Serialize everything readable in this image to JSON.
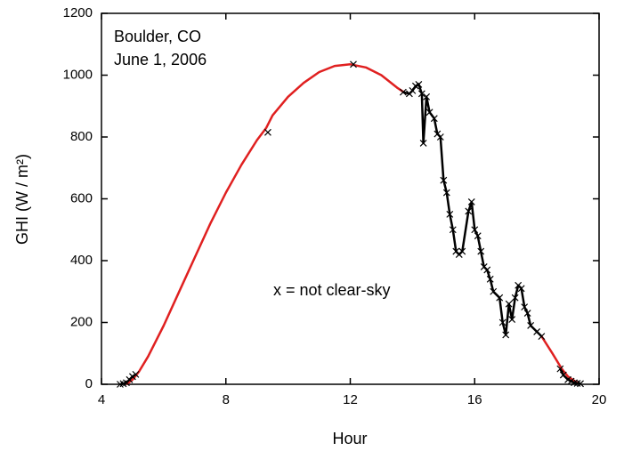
{
  "chart_data": {
    "type": "line",
    "annotations": [
      "Boulder, CO",
      "June 1, 2006",
      "x = not clear-sky"
    ],
    "xlabel": "Hour",
    "ylabel": "GHI (W / m²)",
    "xlim": [
      4,
      20
    ],
    "xticks": [
      4,
      8,
      12,
      16,
      20
    ],
    "ylim": [
      0,
      1200
    ],
    "yticks": [
      0,
      200,
      400,
      600,
      800,
      1000,
      1200
    ],
    "series": [
      {
        "color": "#e02020",
        "marker": "none",
        "x": [
          4.8,
          5.0,
          5.2,
          5.5,
          6.0,
          6.5,
          7.0,
          7.5,
          8.0,
          8.5,
          9.0,
          9.3,
          9.5,
          10.0,
          10.5,
          11.0,
          11.5,
          12.0,
          12.5,
          13.0,
          13.5,
          13.8,
          16.0,
          18.15,
          18.5,
          18.8,
          19.0,
          19.3
        ],
        "values": [
          0,
          15,
          40,
          90,
          190,
          300,
          410,
          520,
          620,
          710,
          790,
          830,
          870,
          930,
          975,
          1010,
          1030,
          1035,
          1025,
          1000,
          960,
          940,
          null,
          155,
          100,
          50,
          25,
          5
        ]
      },
      {
        "color": "#000000",
        "marker": "x",
        "x": [
          4.6,
          4.7,
          4.8,
          4.9,
          5.0,
          5.1,
          7.0,
          9.35,
          10.5,
          12.1,
          13.0,
          13.7,
          13.9,
          14.0,
          14.1,
          14.2,
          14.3,
          14.35,
          14.45,
          14.55,
          14.7,
          14.8,
          14.9,
          15.0,
          15.1,
          15.2,
          15.3,
          15.4,
          15.5,
          15.6,
          15.8,
          15.9,
          16.0,
          16.1,
          16.2,
          16.3,
          16.4,
          16.5,
          16.6,
          16.8,
          16.9,
          17.0,
          17.1,
          17.2,
          17.3,
          17.4,
          17.5,
          17.6,
          17.7,
          17.8,
          18.0,
          18.15,
          18.5,
          18.75,
          18.85,
          19.0,
          19.1,
          19.2,
          19.3,
          19.4
        ],
        "values": [
          0,
          2,
          5,
          15,
          25,
          32,
          null,
          815,
          null,
          1035,
          null,
          945,
          940,
          950,
          965,
          970,
          940,
          780,
          930,
          880,
          860,
          810,
          800,
          660,
          620,
          550,
          500,
          430,
          420,
          430,
          560,
          590,
          500,
          480,
          430,
          380,
          370,
          340,
          300,
          280,
          200,
          160,
          260,
          210,
          280,
          320,
          310,
          250,
          230,
          190,
          170,
          155,
          null,
          50,
          30,
          15,
          10,
          5,
          3,
          2
        ]
      }
    ]
  }
}
